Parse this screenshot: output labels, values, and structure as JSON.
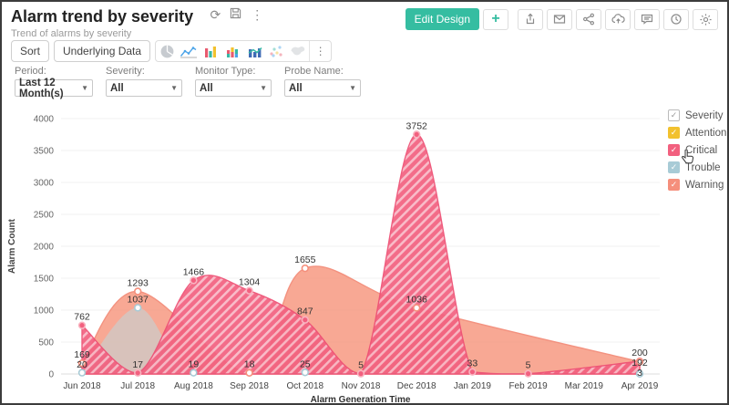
{
  "header": {
    "title": "Alarm trend by severity",
    "subtitle": "Trend of alarms by severity"
  },
  "top_actions": {
    "edit_design_label": "Edit Design",
    "icons": [
      "plus-icon",
      "export-icon",
      "email-icon",
      "share-icon",
      "cloud-upload-icon",
      "comment-icon",
      "schedule-icon",
      "settings-icon"
    ]
  },
  "toolbar": {
    "sort_label": "Sort",
    "underlying_data_label": "Underlying Data",
    "chart_type_icons": [
      "pie-chart-icon",
      "line-chart-icon",
      "bar-chart-icon",
      "stacked-bar-chart-icon",
      "combo-chart-icon",
      "scatter-chart-icon",
      "map-chart-icon",
      "more-icon"
    ]
  },
  "filters": [
    {
      "label": "Period:",
      "value": "Last 12 Month(s)"
    },
    {
      "label": "Severity:",
      "value": "All"
    },
    {
      "label": "Monitor Type:",
      "value": "All"
    },
    {
      "label": "Probe Name:",
      "value": "All"
    }
  ],
  "legend": {
    "title": "Severity",
    "items": [
      {
        "label": "Attention",
        "color": "#f2c12e"
      },
      {
        "label": "Critical",
        "color": "#f2607f"
      },
      {
        "label": "Trouble",
        "color": "#a8cbd6"
      },
      {
        "label": "Warning",
        "color": "#f58f7c"
      }
    ]
  },
  "chart_data": {
    "type": "area",
    "title": "Alarm trend by severity",
    "xlabel": "Alarm Generation Time",
    "ylabel": "Alarm Count",
    "categories": [
      "Jun 2018",
      "Jul 2018",
      "Aug 2018",
      "Sep 2018",
      "Oct 2018",
      "Nov 2018",
      "Dec 2018",
      "Jan 2019",
      "Feb 2019",
      "Mar 2019",
      "Apr 2019"
    ],
    "ylim": [
      0,
      4000
    ],
    "yticks": [
      0,
      500,
      1000,
      1500,
      2000,
      2500,
      3000,
      3500,
      4000
    ],
    "grid": true,
    "legend_position": "right",
    "series": [
      {
        "name": "Attention",
        "color": "#f2c12e",
        "values": [
          null,
          null,
          null,
          null,
          null,
          null,
          null,
          null,
          null,
          null,
          null
        ]
      },
      {
        "name": "Critical",
        "color": "#f2607f",
        "values": [
          762,
          17,
          1466,
          1304,
          847,
          5,
          3752,
          33,
          5,
          null,
          200
        ]
      },
      {
        "name": "Trouble",
        "color": "#a8cbd6",
        "values": [
          20,
          1037,
          19,
          null,
          25,
          null,
          null,
          null,
          null,
          null,
          3
        ]
      },
      {
        "name": "Warning",
        "color": "#f58f7c",
        "values": [
          169,
          1293,
          null,
          18,
          1655,
          null,
          1036,
          null,
          null,
          null,
          192
        ]
      }
    ]
  }
}
